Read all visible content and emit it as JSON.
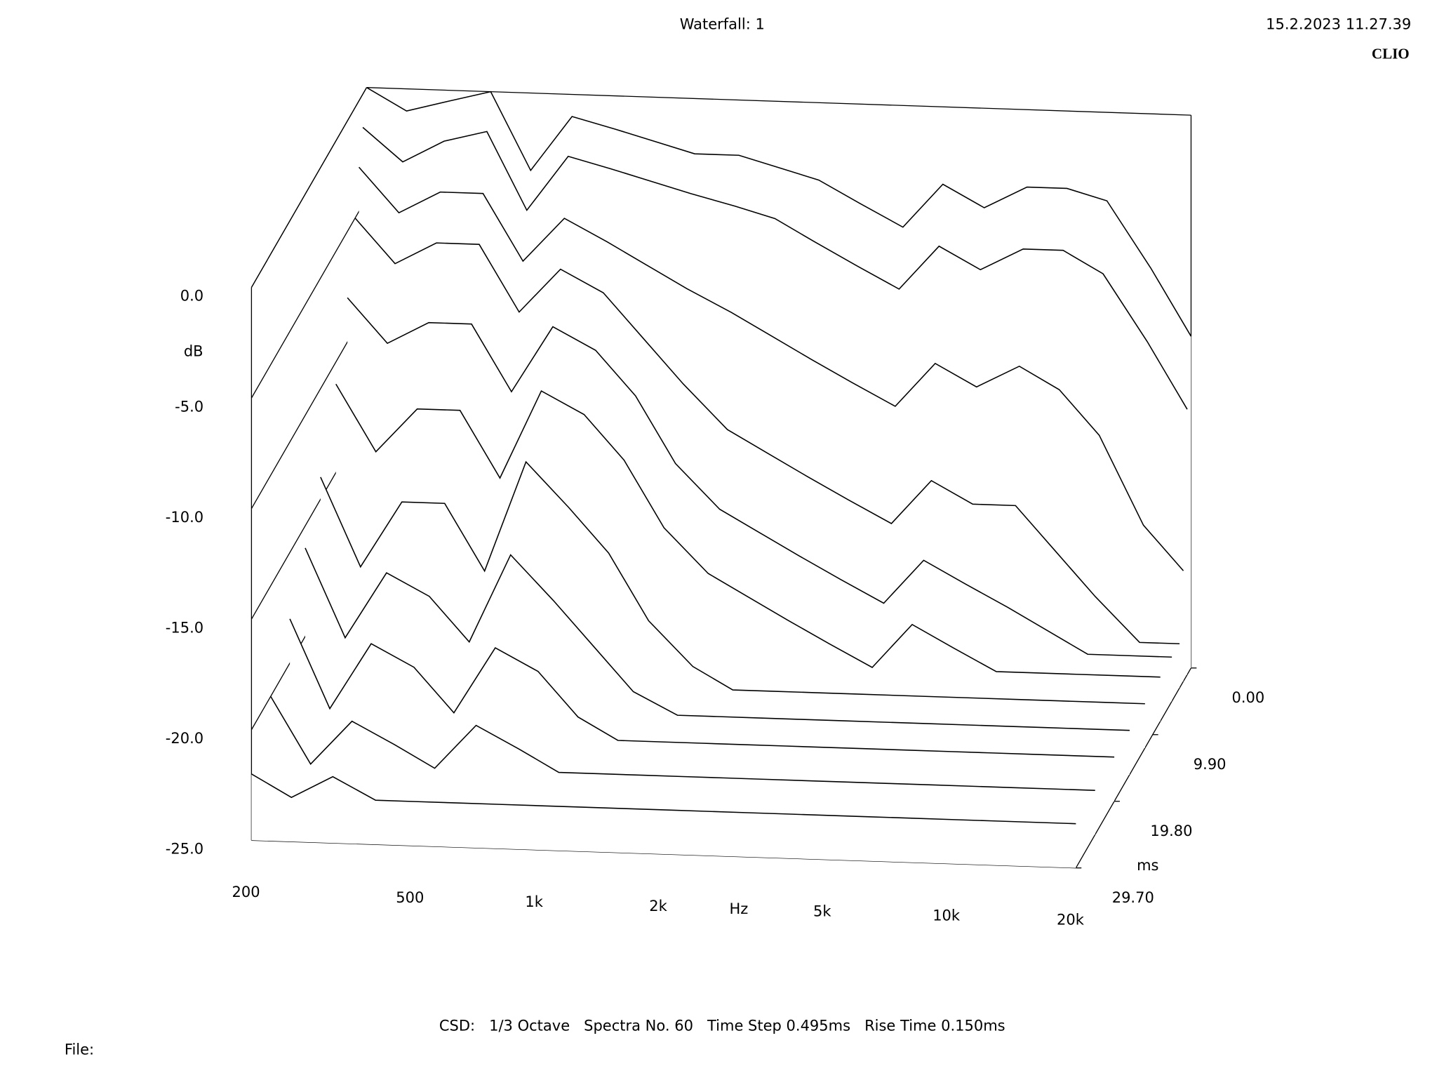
{
  "header": {
    "title": "Waterfall: 1",
    "timestamp": "15.2.2023 11.27.39",
    "brand": "CLIO"
  },
  "footer": {
    "settings": "CSD:   1/3 Octave   Spectra No. 60   Time Step 0.495ms   Rise Time 0.150ms",
    "file": "File:"
  },
  "chart_data": {
    "type": "waterfall",
    "x_label": "Hz",
    "y_label": "dB",
    "z_label": "ms",
    "x_log": true,
    "xlim": [
      200,
      20000
    ],
    "xticks": [
      200,
      500,
      {
        "value": 1000,
        "label": "1k"
      },
      {
        "value": 2000,
        "label": "2k"
      },
      {
        "value": 5000,
        "label": "5k"
      },
      {
        "value": 10000,
        "label": "10k"
      },
      {
        "value": 20000,
        "label": "20k"
      }
    ],
    "ylim": [
      -25,
      0
    ],
    "yticks": [
      {
        "value": 0,
        "label": "0.0"
      },
      {
        "value": -5,
        "label": "-5.0"
      },
      {
        "value": -10,
        "label": "-10.0"
      },
      {
        "value": -15,
        "label": "-15.0"
      },
      {
        "value": -20,
        "label": "-20.0"
      },
      {
        "value": -25,
        "label": "-25.0"
      }
    ],
    "zlim": [
      0,
      29.7
    ],
    "zticks": [
      {
        "value": 0,
        "label": "0.00"
      },
      {
        "value": 9.9,
        "label": "9.90"
      },
      {
        "value": 19.8,
        "label": "19.80"
      },
      {
        "value": 29.7,
        "label": "29.70"
      }
    ],
    "color": "#000000",
    "x": [
      200,
      250,
      315,
      400,
      500,
      630,
      800,
      1000,
      1250,
      1600,
      2000,
      2500,
      3150,
      4000,
      5000,
      6300,
      8000,
      10000,
      12500,
      16000,
      20000
    ],
    "series": [
      {
        "time": 0,
        "values": [
          0,
          -1,
          -0.5,
          0,
          -3.5,
          -1,
          -1.5,
          -2,
          -2.5,
          -2.5,
          -3,
          -3.5,
          -4.5,
          -5.5,
          -3.5,
          -4.5,
          -3.5,
          -3.5,
          -4,
          -7,
          -10
        ]
      },
      {
        "time": 0.99,
        "values": [
          -1.5,
          -3,
          -2,
          -1.5,
          -5,
          -2.5,
          -3,
          -3.5,
          -4,
          -4.5,
          -5,
          -6,
          -7,
          -8,
          -6,
          -7,
          -6,
          -6,
          -7,
          -10,
          -13
        ]
      },
      {
        "time": 1.98,
        "values": [
          -3,
          -5,
          -4,
          -4,
          -7,
          -5,
          -6,
          -7,
          -8,
          -9,
          -10,
          -11,
          -12,
          -13,
          -11,
          -12,
          -11,
          -12,
          -14,
          -18,
          -20
        ]
      },
      {
        "time": 2.97,
        "values": [
          -5,
          -7,
          -6,
          -6,
          -9,
          -7,
          -8,
          -10,
          -12,
          -14,
          -15,
          -16,
          -17,
          -18,
          -16,
          -17,
          -17,
          -19,
          -21,
          -23,
          -23
        ]
      },
      {
        "time": 4.95,
        "values": [
          -8,
          -10,
          -9,
          -9,
          -12,
          -9,
          -10,
          -12,
          -15,
          -17,
          -18,
          -19,
          -20,
          -21,
          -19,
          -20,
          -21,
          -22,
          -23,
          -23,
          -23
        ]
      },
      {
        "time": 7.92,
        "values": [
          -11,
          -14,
          -12,
          -12,
          -15,
          -11,
          -12,
          -14,
          -17,
          -19,
          -20,
          -21,
          -22,
          -23,
          -21,
          -22,
          -23,
          -23,
          -23,
          -23,
          -23
        ]
      },
      {
        "time": 11.88,
        "values": [
          -14,
          -18,
          -15,
          -15,
          -18,
          -13,
          -15,
          -17,
          -20,
          -22,
          -23,
          -23,
          -23,
          -23,
          -23,
          -23,
          -23,
          -23,
          -23,
          -23,
          -23
        ]
      },
      {
        "time": 15.84,
        "values": [
          -16,
          -20,
          -17,
          -18,
          -20,
          -16,
          -18,
          -20,
          -22,
          -23,
          -23,
          -23,
          -23,
          -23,
          -23,
          -23,
          -23,
          -23,
          -23,
          -23,
          -23
        ]
      },
      {
        "time": 19.8,
        "values": [
          -18,
          -22,
          -19,
          -20,
          -22,
          -19,
          -20,
          -22,
          -23,
          -23,
          -23,
          -23,
          -23,
          -23,
          -23,
          -23,
          -23,
          -23,
          -23,
          -23,
          -23
        ]
      },
      {
        "time": 24.75,
        "values": [
          -20,
          -23,
          -21,
          -22,
          -23,
          -21,
          -22,
          -23,
          -23,
          -23,
          -23,
          -23,
          -23,
          -23,
          -23,
          -23,
          -23,
          -23,
          -23,
          -23,
          -23
        ]
      },
      {
        "time": 29.7,
        "values": [
          -22,
          -23,
          -22,
          -23,
          -23,
          -23,
          -23,
          -23,
          -23,
          -23,
          -23,
          -23,
          -23,
          -23,
          -23,
          -23,
          -23,
          -23,
          -23,
          -23,
          -23
        ]
      }
    ]
  }
}
